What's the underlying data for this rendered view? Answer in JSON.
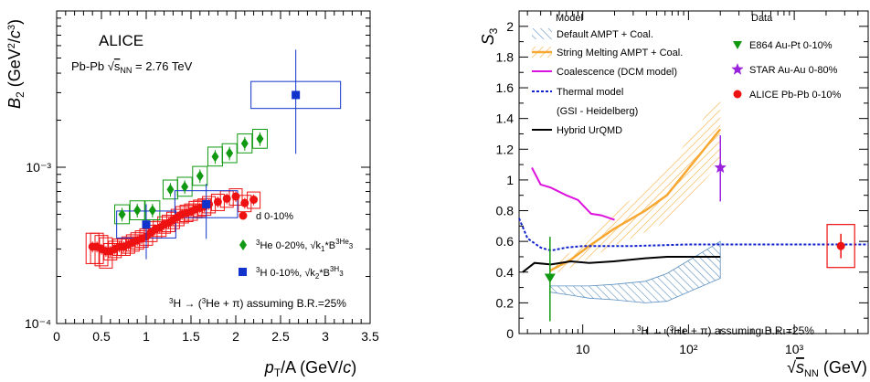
{
  "colors": {
    "alice": "#ee1111",
    "he3": "#119911",
    "h3": "#1133cc",
    "e864": "#119911",
    "star": "#9922dd",
    "default_ampt": "#5b8fbf",
    "string_melting": "#f7a833",
    "coalescence": "#dd11dd",
    "thermal": "#1122cc",
    "urqmd": "#000000"
  },
  "chart_data": [
    {
      "type": "scatter",
      "title": "ALICE",
      "subtitle": "Pb-Pb √sNN = 2.76 TeV",
      "xlabel": "pT/A (GeV/c)",
      "ylabel": "B2 (GeV²/c³)",
      "xlim": [
        0,
        3.5
      ],
      "ylim": [
        0.0001,
        0.01
      ],
      "yscale": "log",
      "x_ticks": [
        "0",
        "0.5",
        "1",
        "1.5",
        "2",
        "2.5",
        "3",
        "3.5"
      ],
      "y_ticks": [
        "10⁻⁴",
        "10⁻³"
      ],
      "annotation": "³ΛH → (³He + π) assuming B.R.=25%",
      "legend_position": "bottom-right",
      "series": [
        {
          "name": "d 0-10%",
          "marker": "circle",
          "x": [
            0.4,
            0.45,
            0.5,
            0.55,
            0.6,
            0.65,
            0.7,
            0.75,
            0.8,
            0.85,
            0.9,
            0.95,
            1.0,
            1.05,
            1.1,
            1.15,
            1.2,
            1.25,
            1.3,
            1.35,
            1.4,
            1.45,
            1.5,
            1.55,
            1.6,
            1.65,
            1.7,
            1.8,
            1.9,
            2.0,
            2.1,
            2.2
          ],
          "y": [
            0.00031,
            0.00031,
            0.0003,
            0.00029,
            0.00029,
            0.0003,
            0.00031,
            0.00031,
            0.00032,
            0.00033,
            0.00034,
            0.00035,
            0.00036,
            0.00038,
            0.0004,
            0.00041,
            0.00043,
            0.00044,
            0.00046,
            0.00048,
            0.0005,
            0.00051,
            0.00052,
            0.00054,
            0.00055,
            0.00056,
            0.00058,
            0.0006,
            0.00063,
            0.00065,
            0.00059,
            0.00062
          ]
        },
        {
          "name": "³He 0-20%, √(k1*B3^3He)",
          "marker": "diamond",
          "x": [
            0.73,
            0.9,
            1.07,
            1.27,
            1.43,
            1.6,
            1.77,
            1.93,
            2.1,
            2.27
          ],
          "y": [
            0.0005,
            0.00053,
            0.00053,
            0.00072,
            0.00075,
            0.00088,
            0.00117,
            0.00123,
            0.00142,
            0.00152
          ]
        },
        {
          "name": "³ΛH 0-10%, √(k2*B3^3ΛH)",
          "marker": "square",
          "x": [
            1.0,
            1.67,
            2.67
          ],
          "y": [
            0.00043,
            0.00058,
            0.0029
          ]
        }
      ]
    },
    {
      "type": "line",
      "xlabel": "√sNN (GeV)",
      "ylabel": "S3",
      "xscale": "log",
      "xlim": [
        2.5,
        5000
      ],
      "ylim": [
        0,
        2.1
      ],
      "x_ticks": [
        "10",
        "10²",
        "10³"
      ],
      "y_ticks": [
        "0",
        "0.2",
        "0.4",
        "0.6",
        "0.8",
        "1",
        "1.2",
        "1.4",
        "1.6",
        "1.8",
        "2"
      ],
      "annotation": "³ΛH → (³He + π) assuming B.R.=25%",
      "legend_model_title": "Model",
      "legend_data_title": "Data",
      "model_labels": [
        "Default AMPT + Coal.",
        "String Melting AMPT + Coal.",
        "Coalescence (DCM model)",
        "Thermal model",
        "(GSI - Heidelberg)",
        "Hybrid UrQMD"
      ],
      "data_labels": [
        "E864 Au-Pt 0-10%",
        "STAR Au-Au 0-80%",
        "ALICE Pb-Pb 0-10%"
      ],
      "series": [
        {
          "name": "Default AMPT + Coal.",
          "x": [
            4.9,
            7.7,
            11.5,
            19.6,
            39,
            62.4,
            200
          ],
          "y": [
            0.29,
            0.28,
            0.27,
            0.27,
            0.27,
            0.3,
            0.48
          ]
        },
        {
          "name": "String Melting AMPT + Coal.",
          "x": [
            4.9,
            7.7,
            11.5,
            19.6,
            39,
            62.4,
            200
          ],
          "y": [
            0.41,
            0.48,
            0.57,
            0.68,
            0.8,
            0.9,
            1.33
          ]
        },
        {
          "name": "Coalescence (DCM model)",
          "x": [
            3.3,
            4,
            5,
            7,
            9,
            12,
            15,
            20
          ],
          "y": [
            1.08,
            0.97,
            0.95,
            0.9,
            0.87,
            0.78,
            0.77,
            0.74
          ]
        },
        {
          "name": "Thermal model",
          "x": [
            2.5,
            3,
            4,
            5,
            7,
            10,
            30,
            100,
            1000,
            5000
          ],
          "y": [
            0.75,
            0.62,
            0.56,
            0.54,
            0.56,
            0.57,
            0.57,
            0.58,
            0.58,
            0.58
          ]
        },
        {
          "name": "Hybrid UrQMD",
          "x": [
            2.7,
            3.5,
            5,
            7.7,
            11.5,
            19.6,
            39,
            62.4,
            200
          ],
          "y": [
            0.4,
            0.46,
            0.45,
            0.47,
            0.46,
            0.47,
            0.49,
            0.5,
            0.5
          ]
        },
        {
          "name": "E864 Au-Pt 0-10%",
          "marker": "triangle-down",
          "x": [
            4.9
          ],
          "y": [
            0.36
          ]
        },
        {
          "name": "STAR Au-Au 0-80%",
          "marker": "star",
          "x": [
            200
          ],
          "y": [
            1.08
          ]
        },
        {
          "name": "ALICE Pb-Pb 0-10%",
          "marker": "circle",
          "x": [
            2760
          ],
          "y": [
            0.57
          ]
        }
      ]
    }
  ]
}
